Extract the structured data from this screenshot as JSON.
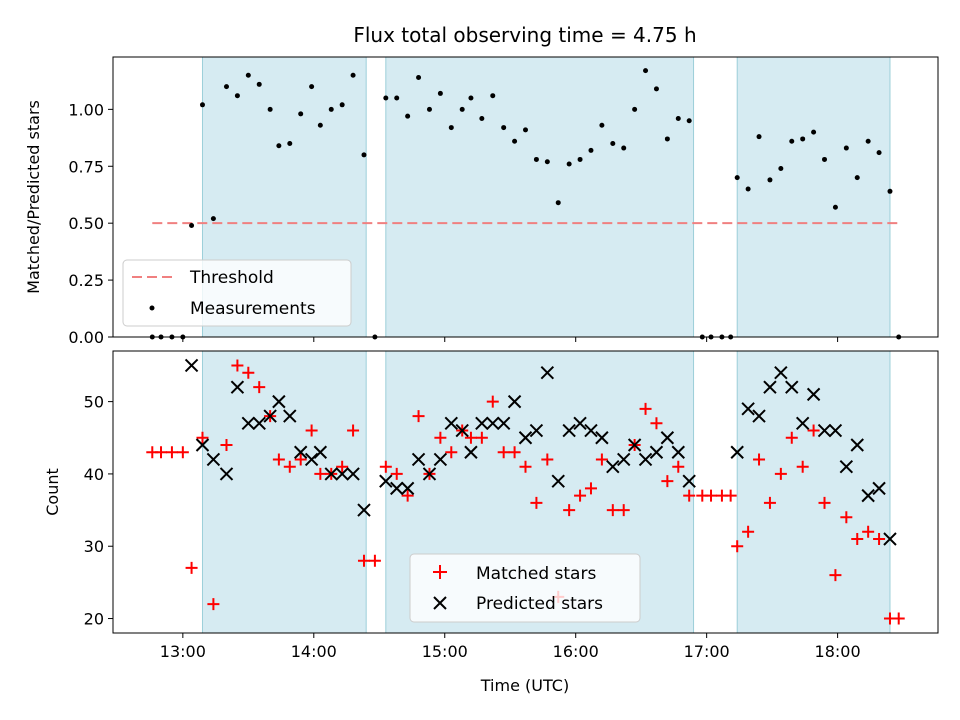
{
  "chart_data": [
    {
      "type": "scatter",
      "title": "Flux total observing time = 4.75 h",
      "xlabel": "",
      "ylabel": "Matched/Predicted stars",
      "xlim": [
        "12:28",
        "18:46"
      ],
      "ylim": [
        0,
        1.23
      ],
      "yticks": [
        0.0,
        0.25,
        0.5,
        0.75,
        1.0
      ],
      "ytick_labels": [
        "0.00",
        "0.25",
        "0.50",
        "0.75",
        "1.00"
      ],
      "legend_position": "lower-left",
      "shaded_intervals": [
        [
          "13:09",
          "14:24"
        ],
        [
          "14:33",
          "16:54"
        ],
        [
          "17:14",
          "18:24"
        ]
      ],
      "threshold": {
        "name": "Threshold",
        "value": 0.5,
        "x_range": [
          "12:46",
          "18:28"
        ],
        "color": "#f08080"
      },
      "measurements": {
        "name": "Measurements",
        "color": "#000000",
        "points": [
          [
            "12:46",
            0.0
          ],
          [
            "12:50",
            0.0
          ],
          [
            "12:55",
            0.0
          ],
          [
            "13:00",
            0.0
          ],
          [
            "13:04",
            0.49
          ],
          [
            "13:09",
            1.02
          ],
          [
            "13:14",
            0.52
          ],
          [
            "13:20",
            1.1
          ],
          [
            "13:25",
            1.06
          ],
          [
            "13:30",
            1.15
          ],
          [
            "13:35",
            1.11
          ],
          [
            "13:40",
            1.0
          ],
          [
            "13:44",
            0.84
          ],
          [
            "13:49",
            0.85
          ],
          [
            "13:54",
            0.98
          ],
          [
            "13:59",
            1.1
          ],
          [
            "14:03",
            0.93
          ],
          [
            "14:08",
            1.0
          ],
          [
            "14:13",
            1.02
          ],
          [
            "14:18",
            1.15
          ],
          [
            "14:23",
            0.8
          ],
          [
            "14:28",
            0.0
          ],
          [
            "14:33",
            1.05
          ],
          [
            "14:38",
            1.05
          ],
          [
            "14:43",
            0.97
          ],
          [
            "14:48",
            1.14
          ],
          [
            "14:53",
            1.0
          ],
          [
            "14:58",
            1.07
          ],
          [
            "15:03",
            0.92
          ],
          [
            "15:08",
            1.0
          ],
          [
            "15:12",
            1.05
          ],
          [
            "15:17",
            0.96
          ],
          [
            "15:22",
            1.06
          ],
          [
            "15:27",
            0.92
          ],
          [
            "15:32",
            0.86
          ],
          [
            "15:37",
            0.91
          ],
          [
            "15:42",
            0.78
          ],
          [
            "15:47",
            0.77
          ],
          [
            "15:52",
            0.59
          ],
          [
            "15:57",
            0.76
          ],
          [
            "16:02",
            0.78
          ],
          [
            "16:07",
            0.82
          ],
          [
            "16:12",
            0.93
          ],
          [
            "16:17",
            0.85
          ],
          [
            "16:22",
            0.83
          ],
          [
            "16:27",
            1.0
          ],
          [
            "16:32",
            1.17
          ],
          [
            "16:37",
            1.09
          ],
          [
            "16:42",
            0.87
          ],
          [
            "16:47",
            0.96
          ],
          [
            "16:52",
            0.95
          ],
          [
            "16:58",
            0.0
          ],
          [
            "17:02",
            0.0
          ],
          [
            "17:07",
            0.0
          ],
          [
            "17:11",
            0.0
          ],
          [
            "17:14",
            0.7
          ],
          [
            "17:19",
            0.65
          ],
          [
            "17:24",
            0.88
          ],
          [
            "17:29",
            0.69
          ],
          [
            "17:34",
            0.74
          ],
          [
            "17:39",
            0.86
          ],
          [
            "17:44",
            0.87
          ],
          [
            "17:49",
            0.9
          ],
          [
            "17:54",
            0.78
          ],
          [
            "17:59",
            0.57
          ],
          [
            "18:04",
            0.83
          ],
          [
            "18:09",
            0.7
          ],
          [
            "18:14",
            0.86
          ],
          [
            "18:19",
            0.81
          ],
          [
            "18:24",
            0.64
          ],
          [
            "18:28",
            0.0
          ]
        ]
      }
    },
    {
      "type": "scatter",
      "title": "",
      "xlabel": "Time (UTC)",
      "ylabel": "Count",
      "xlim": [
        "12:28",
        "18:46"
      ],
      "ylim": [
        18,
        57
      ],
      "yticks": [
        20,
        30,
        40,
        50
      ],
      "ytick_labels": [
        "20",
        "30",
        "40",
        "50"
      ],
      "xticks": [
        "13:00",
        "14:00",
        "15:00",
        "16:00",
        "17:00",
        "18:00"
      ],
      "xtick_labels": [
        "13:00",
        "14:00",
        "15:00",
        "16:00",
        "17:00",
        "18:00"
      ],
      "legend_position": "lower-center",
      "shaded_intervals": [
        [
          "13:09",
          "14:24"
        ],
        [
          "14:33",
          "16:54"
        ],
        [
          "17:14",
          "18:24"
        ]
      ],
      "series": [
        {
          "name": "Matched stars",
          "marker": "plus",
          "color": "#ff0000",
          "points": [
            [
              "12:46",
              43
            ],
            [
              "12:50",
              43
            ],
            [
              "12:55",
              43
            ],
            [
              "13:00",
              43
            ],
            [
              "13:04",
              27
            ],
            [
              "13:09",
              45
            ],
            [
              "13:14",
              22
            ],
            [
              "13:20",
              44
            ],
            [
              "13:25",
              55
            ],
            [
              "13:30",
              54
            ],
            [
              "13:35",
              52
            ],
            [
              "13:40",
              48
            ],
            [
              "13:44",
              42
            ],
            [
              "13:49",
              41
            ],
            [
              "13:54",
              42
            ],
            [
              "13:59",
              46
            ],
            [
              "14:03",
              40
            ],
            [
              "14:08",
              40
            ],
            [
              "14:13",
              41
            ],
            [
              "14:18",
              46
            ],
            [
              "14:23",
              28
            ],
            [
              "14:28",
              28
            ],
            [
              "14:33",
              41
            ],
            [
              "14:38",
              40
            ],
            [
              "14:43",
              37
            ],
            [
              "14:48",
              48
            ],
            [
              "14:53",
              40
            ],
            [
              "14:58",
              45
            ],
            [
              "15:03",
              43
            ],
            [
              "15:08",
              46
            ],
            [
              "15:12",
              45
            ],
            [
              "15:17",
              45
            ],
            [
              "15:22",
              50
            ],
            [
              "15:27",
              43
            ],
            [
              "15:32",
              43
            ],
            [
              "15:37",
              41
            ],
            [
              "15:42",
              36
            ],
            [
              "15:47",
              42
            ],
            [
              "15:52",
              23
            ],
            [
              "15:57",
              35
            ],
            [
              "16:02",
              37
            ],
            [
              "16:07",
              38
            ],
            [
              "16:12",
              42
            ],
            [
              "16:17",
              35
            ],
            [
              "16:22",
              35
            ],
            [
              "16:27",
              44
            ],
            [
              "16:32",
              49
            ],
            [
              "16:37",
              47
            ],
            [
              "16:42",
              39
            ],
            [
              "16:47",
              41
            ],
            [
              "16:52",
              37
            ],
            [
              "16:58",
              37
            ],
            [
              "17:02",
              37
            ],
            [
              "17:07",
              37
            ],
            [
              "17:11",
              37
            ],
            [
              "17:14",
              30
            ],
            [
              "17:19",
              32
            ],
            [
              "17:24",
              42
            ],
            [
              "17:29",
              36
            ],
            [
              "17:34",
              40
            ],
            [
              "17:39",
              45
            ],
            [
              "17:44",
              41
            ],
            [
              "17:49",
              46
            ],
            [
              "17:54",
              36
            ],
            [
              "17:59",
              26
            ],
            [
              "18:04",
              34
            ],
            [
              "18:09",
              31
            ],
            [
              "18:14",
              32
            ],
            [
              "18:19",
              31
            ],
            [
              "18:24",
              20
            ],
            [
              "18:28",
              20
            ]
          ]
        },
        {
          "name": "Predicted stars",
          "marker": "x",
          "color": "#000000",
          "points": [
            [
              "13:04",
              55
            ],
            [
              "13:09",
              44
            ],
            [
              "13:14",
              42
            ],
            [
              "13:20",
              40
            ],
            [
              "13:25",
              52
            ],
            [
              "13:30",
              47
            ],
            [
              "13:35",
              47
            ],
            [
              "13:40",
              48
            ],
            [
              "13:44",
              50
            ],
            [
              "13:49",
              48
            ],
            [
              "13:54",
              43
            ],
            [
              "13:59",
              42
            ],
            [
              "14:03",
              43
            ],
            [
              "14:08",
              40
            ],
            [
              "14:13",
              40
            ],
            [
              "14:18",
              40
            ],
            [
              "14:23",
              35
            ],
            [
              "14:33",
              39
            ],
            [
              "14:38",
              38
            ],
            [
              "14:43",
              38
            ],
            [
              "14:48",
              42
            ],
            [
              "14:53",
              40
            ],
            [
              "14:58",
              42
            ],
            [
              "15:03",
              47
            ],
            [
              "15:08",
              46
            ],
            [
              "15:12",
              43
            ],
            [
              "15:17",
              47
            ],
            [
              "15:22",
              47
            ],
            [
              "15:27",
              47
            ],
            [
              "15:32",
              50
            ],
            [
              "15:37",
              45
            ],
            [
              "15:42",
              46
            ],
            [
              "15:47",
              54
            ],
            [
              "15:52",
              39
            ],
            [
              "15:57",
              46
            ],
            [
              "16:02",
              47
            ],
            [
              "16:07",
              46
            ],
            [
              "16:12",
              45
            ],
            [
              "16:17",
              41
            ],
            [
              "16:22",
              42
            ],
            [
              "16:27",
              44
            ],
            [
              "16:32",
              42
            ],
            [
              "16:37",
              43
            ],
            [
              "16:42",
              45
            ],
            [
              "16:47",
              43
            ],
            [
              "16:52",
              39
            ],
            [
              "17:14",
              43
            ],
            [
              "17:19",
              49
            ],
            [
              "17:24",
              48
            ],
            [
              "17:29",
              52
            ],
            [
              "17:34",
              54
            ],
            [
              "17:39",
              52
            ],
            [
              "17:44",
              47
            ],
            [
              "17:49",
              51
            ],
            [
              "17:54",
              46
            ],
            [
              "17:59",
              46
            ],
            [
              "18:04",
              41
            ],
            [
              "18:09",
              44
            ],
            [
              "18:14",
              37
            ],
            [
              "18:19",
              38
            ],
            [
              "18:24",
              31
            ]
          ]
        }
      ]
    }
  ]
}
